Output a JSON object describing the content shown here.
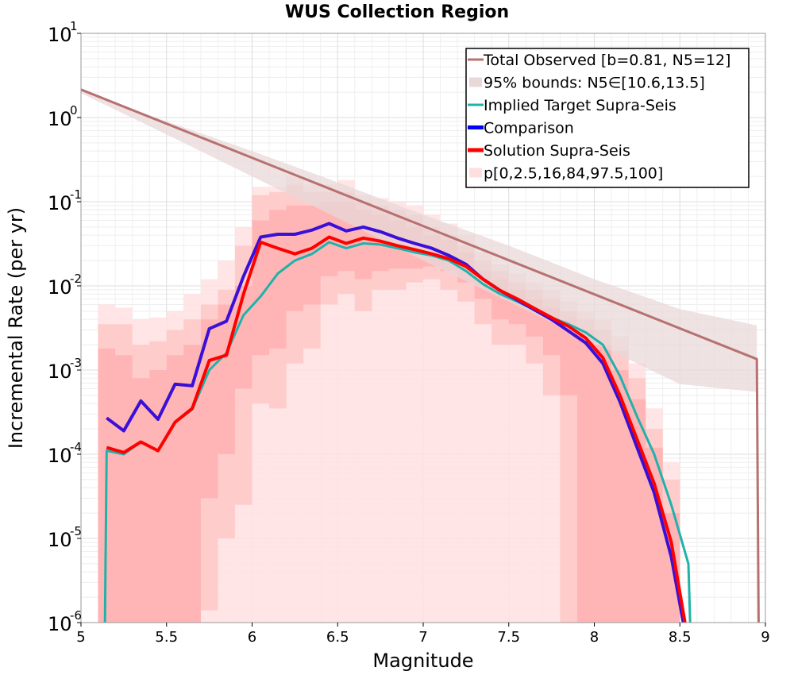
{
  "chart_data": {
    "type": "line",
    "title": "WUS Collection Region",
    "xlabel": "Magnitude",
    "ylabel": "Incremental Rate (per yr)",
    "xlim": [
      5,
      9
    ],
    "ylim_log10": [
      -6,
      1
    ],
    "yscale": "log",
    "x_ticks": [
      "5",
      "5.5",
      "6",
      "6.5",
      "7",
      "7.5",
      "8",
      "8.5",
      "9"
    ],
    "y_ticks": [
      {
        "base": "10",
        "exp": "1"
      },
      {
        "base": "10",
        "exp": "0"
      },
      {
        "base": "10",
        "exp": "-1"
      },
      {
        "base": "10",
        "exp": "-2"
      },
      {
        "base": "10",
        "exp": "-3"
      },
      {
        "base": "10",
        "exp": "-4"
      },
      {
        "base": "10",
        "exp": "-5"
      },
      {
        "base": "10",
        "exp": "-6"
      }
    ],
    "grid": true,
    "legend_position": "top-right",
    "bands": [
      {
        "name": "95% bounds: N5∈[10.6,13.5]",
        "color": "#e8d8d8",
        "x": [
          5.0,
          5.5,
          6.0,
          6.5,
          7.0,
          7.5,
          8.0,
          8.5,
          8.95
        ],
        "lower": [
          1.95,
          0.63,
          0.2,
          0.064,
          0.02,
          0.0065,
          0.0021,
          0.00068,
          0.00055
        ],
        "upper": [
          2.1,
          0.9,
          0.4,
          0.17,
          0.07,
          0.03,
          0.012,
          0.0053,
          0.0034
        ]
      }
    ],
    "fractile_bands": {
      "name": "p[0,2.5,16,84,97.5,100]",
      "color": "#ffaaaa",
      "x": [
        5.15,
        5.25,
        5.35,
        5.45,
        5.55,
        5.65,
        5.75,
        5.85,
        5.95,
        6.05,
        6.15,
        6.25,
        6.35,
        6.45,
        6.55,
        6.65,
        6.75,
        6.85,
        6.95,
        7.05,
        7.15,
        7.25,
        7.35,
        7.45,
        7.55,
        7.65,
        7.75,
        7.85,
        7.95,
        8.05,
        8.15,
        8.25,
        8.35,
        8.45,
        8.55
      ],
      "p0": [
        1e-06,
        1e-06,
        1e-06,
        1e-06,
        1e-06,
        1e-06,
        1e-06,
        1e-06,
        1e-06,
        1e-06,
        1e-06,
        1e-06,
        1e-06,
        1e-06,
        1e-06,
        1e-06,
        1e-06,
        1e-06,
        1e-06,
        1e-06,
        1e-06,
        1e-06,
        1e-06,
        1e-06,
        1e-06,
        1e-06,
        1e-06,
        1e-06,
        1e-06,
        1e-06,
        1e-06,
        1e-06,
        1e-06,
        1e-06,
        1e-06
      ],
      "p100": [
        0.006,
        0.0055,
        0.004,
        0.0042,
        0.005,
        0.008,
        0.012,
        0.02,
        0.05,
        0.15,
        0.15,
        0.2,
        0.16,
        0.16,
        0.18,
        0.12,
        0.11,
        0.1,
        0.09,
        0.07,
        0.055,
        0.04,
        0.025,
        0.018,
        0.014,
        0.011,
        0.009,
        0.0065,
        0.005,
        0.004,
        0.0025,
        0.0012,
        0.00035,
        8e-05,
        1e-06
      ],
      "p2_5": [
        1e-06,
        1e-06,
        1e-06,
        1e-06,
        1e-06,
        1e-06,
        1.4e-06,
        1e-05,
        2.5e-05,
        0.0004,
        0.00035,
        0.0012,
        0.0018,
        0.006,
        0.008,
        0.005,
        0.009,
        0.009,
        0.011,
        0.012,
        0.009,
        0.0065,
        0.0035,
        0.002,
        0.002,
        0.0012,
        0.0005,
        1e-06,
        1e-06,
        1e-06,
        1e-06,
        1e-06,
        1e-06,
        1e-06,
        1e-06
      ],
      "p97_5": [
        0.0035,
        0.0035,
        0.002,
        0.0022,
        0.003,
        0.004,
        0.006,
        0.009,
        0.03,
        0.12,
        0.13,
        0.16,
        0.13,
        0.13,
        0.13,
        0.1,
        0.09,
        0.08,
        0.07,
        0.05,
        0.04,
        0.03,
        0.02,
        0.015,
        0.011,
        0.009,
        0.007,
        0.005,
        0.004,
        0.003,
        0.0017,
        0.0008,
        0.0002,
        5e-05,
        1e-06
      ],
      "p16": [
        1e-06,
        1e-06,
        1e-06,
        1e-06,
        1e-06,
        1e-06,
        3e-05,
        0.0001,
        0.0006,
        0.0015,
        0.0018,
        0.005,
        0.006,
        0.013,
        0.015,
        0.012,
        0.015,
        0.016,
        0.016,
        0.017,
        0.015,
        0.011,
        0.007,
        0.004,
        0.0035,
        0.0025,
        0.0015,
        0.0005,
        1e-06,
        1e-06,
        1e-06,
        1e-06,
        1e-06,
        1e-06,
        1e-06
      ],
      "p84": [
        0.0018,
        0.0015,
        0.0008,
        0.001,
        0.0015,
        0.002,
        0.004,
        0.006,
        0.01,
        0.06,
        0.08,
        0.09,
        0.09,
        0.1,
        0.1,
        0.08,
        0.07,
        0.06,
        0.05,
        0.04,
        0.035,
        0.025,
        0.015,
        0.012,
        0.009,
        0.007,
        0.0055,
        0.004,
        0.003,
        0.002,
        0.001,
        0.00045,
        0.00012,
        2e-05,
        1e-06
      ]
    },
    "series": [
      {
        "name": "Total Observed [b=0.81, N5=12]",
        "color": "#b87070",
        "width": 3,
        "x": [
          5.0,
          8.95,
          8.95,
          8.96
        ],
        "y": [
          2.15,
          0.00135,
          0.00135,
          1e-06
        ]
      },
      {
        "name": "Implied Target Supra-Seis",
        "color": "#20b2aa",
        "width": 3,
        "x": [
          5.14,
          5.15,
          5.25,
          5.35,
          5.45,
          5.55,
          5.65,
          5.75,
          5.85,
          5.95,
          6.05,
          6.15,
          6.25,
          6.35,
          6.45,
          6.55,
          6.65,
          6.75,
          6.85,
          6.95,
          7.05,
          7.15,
          7.25,
          7.35,
          7.45,
          7.55,
          7.65,
          7.75,
          7.85,
          7.95,
          8.05,
          8.15,
          8.25,
          8.35,
          8.45,
          8.55,
          8.56
        ],
        "y": [
          1e-06,
          0.00011,
          0.0001,
          0.00014,
          0.00011,
          0.00024,
          0.00034,
          0.001,
          0.0016,
          0.0045,
          0.0075,
          0.014,
          0.02,
          0.024,
          0.033,
          0.028,
          0.032,
          0.031,
          0.028,
          0.025,
          0.023,
          0.02,
          0.015,
          0.0105,
          0.008,
          0.0065,
          0.0052,
          0.0042,
          0.0035,
          0.0028,
          0.002,
          0.00085,
          0.00028,
          0.0001,
          2.5e-05,
          5e-06,
          1e-06
        ]
      },
      {
        "name": "Comparison",
        "color": "#3a10d8",
        "width": 4,
        "x": [
          5.15,
          5.25,
          5.35,
          5.45,
          5.55,
          5.65,
          5.75,
          5.85,
          5.95,
          6.05,
          6.15,
          6.25,
          6.35,
          6.45,
          6.55,
          6.65,
          6.75,
          6.85,
          6.95,
          7.05,
          7.15,
          7.25,
          7.35,
          7.45,
          7.55,
          7.65,
          7.75,
          7.85,
          7.95,
          8.05,
          8.15,
          8.25,
          8.35,
          8.45,
          8.52
        ],
        "y": [
          0.00027,
          0.00019,
          0.00043,
          0.00026,
          0.00068,
          0.00065,
          0.0031,
          0.0038,
          0.013,
          0.038,
          0.041,
          0.041,
          0.046,
          0.055,
          0.045,
          0.05,
          0.044,
          0.037,
          0.032,
          0.028,
          0.023,
          0.018,
          0.012,
          0.0088,
          0.0068,
          0.0052,
          0.004,
          0.0029,
          0.0021,
          0.0012,
          0.00042,
          0.00012,
          3.5e-05,
          6e-06,
          1e-06
        ]
      },
      {
        "name": "Solution Supra-Seis",
        "color": "#ff0000",
        "width": 4,
        "x": [
          5.15,
          5.25,
          5.35,
          5.45,
          5.55,
          5.65,
          5.75,
          5.85,
          5.95,
          6.05,
          6.15,
          6.25,
          6.35,
          6.45,
          6.55,
          6.65,
          6.75,
          6.85,
          6.95,
          7.05,
          7.15,
          7.25,
          7.35,
          7.45,
          7.55,
          7.65,
          7.75,
          7.85,
          7.95,
          8.05,
          8.15,
          8.25,
          8.35,
          8.45,
          8.53
        ],
        "y": [
          0.00012,
          0.000105,
          0.00014,
          0.00011,
          0.00024,
          0.00035,
          0.0013,
          0.0015,
          0.008,
          0.033,
          0.028,
          0.024,
          0.028,
          0.038,
          0.032,
          0.037,
          0.034,
          0.03,
          0.027,
          0.024,
          0.021,
          0.017,
          0.012,
          0.0088,
          0.007,
          0.0054,
          0.0042,
          0.0033,
          0.0024,
          0.0014,
          0.0005,
          0.00015,
          4.5e-05,
          9e-06,
          1e-06
        ]
      }
    ],
    "legend": [
      {
        "label": "Total Observed [b=0.81, N5=12]",
        "color": "#b87070",
        "kind": "line"
      },
      {
        "label": "95% bounds: N5∈[10.6,13.5]",
        "color": "#e8d8d8",
        "kind": "band"
      },
      {
        "label": "Implied Target Supra-Seis",
        "color": "#20b2aa",
        "kind": "line"
      },
      {
        "label": "Comparison",
        "color": "#0000ff",
        "kind": "thickline"
      },
      {
        "label": "Solution Supra-Seis",
        "color": "#ff0000",
        "kind": "thickline"
      },
      {
        "label": "p[0,2.5,16,84,97.5,100]",
        "color": "#ffdede",
        "kind": "band"
      }
    ]
  }
}
